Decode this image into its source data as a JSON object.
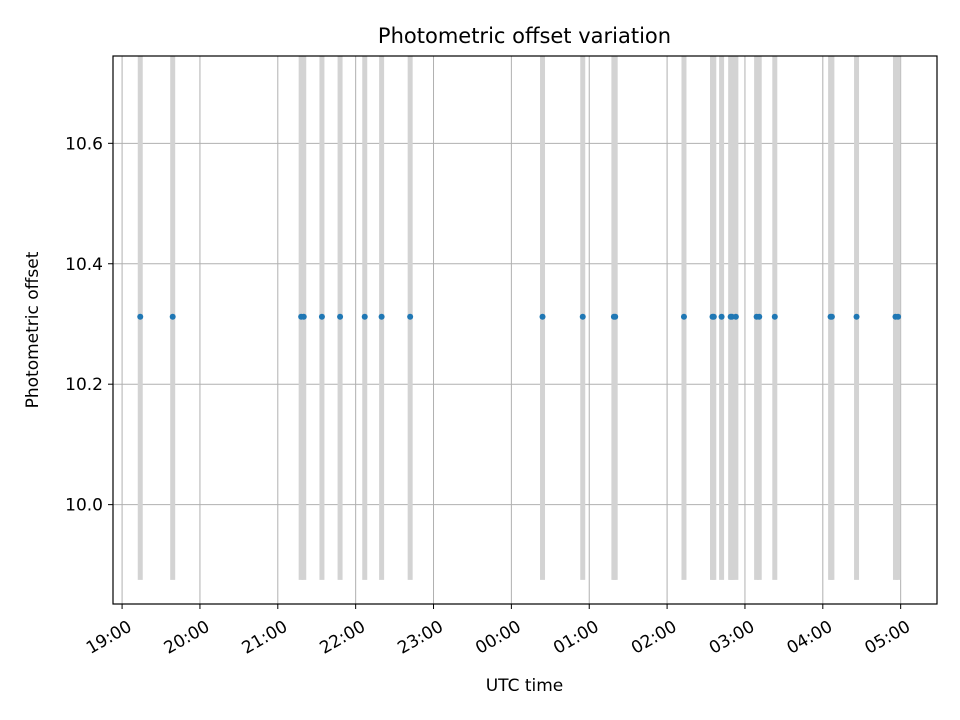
{
  "chart_data": {
    "type": "scatter",
    "title": "Photometric offset variation",
    "xlabel": "UTC time",
    "ylabel": "Photometric offset",
    "x_ticks": [
      "19:00",
      "20:00",
      "21:00",
      "22:00",
      "23:00",
      "00:00",
      "01:00",
      "02:00",
      "03:00",
      "04:00",
      "05:00"
    ],
    "y_ticks": [
      "10.0",
      "10.2",
      "10.4",
      "10.6"
    ],
    "xlim": [
      "18:53",
      "05:28"
    ],
    "ylim": [
      9.835,
      10.745
    ],
    "grid": true,
    "errorbar_range": [
      9.875,
      10.745
    ],
    "errorbar_color": "#d3d3d3",
    "marker_color": "#1f77b4",
    "times": [
      "19:14",
      "19:39",
      "21:18",
      "21:20",
      "21:34",
      "21:48",
      "22:07",
      "22:20",
      "22:42",
      "00:24",
      "00:55",
      "01:19",
      "01:20",
      "02:13",
      "02:35",
      "02:36",
      "02:42",
      "02:49",
      "02:50",
      "02:53",
      "03:09",
      "03:11",
      "03:23",
      "04:06",
      "04:07",
      "04:26",
      "04:56",
      "04:58"
    ],
    "values": [
      10.312,
      10.312,
      10.312,
      10.312,
      10.312,
      10.312,
      10.312,
      10.312,
      10.312,
      10.312,
      10.312,
      10.312,
      10.312,
      10.312,
      10.312,
      10.312,
      10.312,
      10.312,
      10.312,
      10.312,
      10.312,
      10.312,
      10.312,
      10.312,
      10.312,
      10.312,
      10.312,
      10.312
    ]
  }
}
